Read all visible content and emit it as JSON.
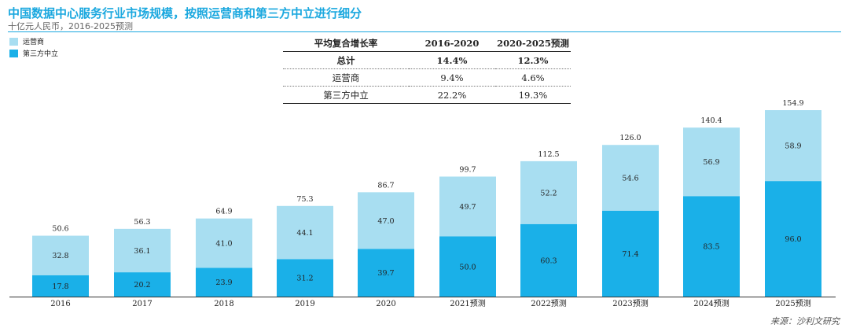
{
  "title": "中国数据中心服务行业市场规模，按照运营商和第三方中立进行细分",
  "subtitle": "十亿元人民币，2016-2025预测",
  "colors": {
    "operator": "#a8def1",
    "neutral": "#1ab0e8",
    "accent": "#1ba8df"
  },
  "legend": {
    "operator": "运营商",
    "neutral": "第三方中立"
  },
  "cagr_table": {
    "headers": [
      "平均复合增长率",
      "2016-2020",
      "2020-2025预测"
    ],
    "rows": [
      [
        "总计",
        "14.4%",
        "12.3%"
      ],
      [
        "运营商",
        "9.4%",
        "4.6%"
      ],
      [
        "第三方中立",
        "22.2%",
        "19.3%"
      ]
    ]
  },
  "source": "来源：沙利文研究",
  "chart_data": {
    "type": "bar",
    "stacked": true,
    "title": "中国数据中心服务行业市场规模，按照运营商和第三方中立进行细分",
    "ylabel": "十亿元人民币",
    "categories": [
      "2016",
      "2017",
      "2018",
      "2019",
      "2020",
      "2021预测",
      "2022预测",
      "2023预测",
      "2024预测",
      "2025预测"
    ],
    "series": [
      {
        "name": "第三方中立",
        "values": [
          17.8,
          20.2,
          23.9,
          31.2,
          39.7,
          50.0,
          60.3,
          71.4,
          83.5,
          96.0
        ]
      },
      {
        "name": "运营商",
        "values": [
          32.8,
          36.1,
          41.0,
          44.1,
          47.0,
          49.7,
          52.2,
          54.6,
          56.9,
          58.9
        ]
      }
    ],
    "totals": [
      50.6,
      56.3,
      64.9,
      75.3,
      86.7,
      99.7,
      112.5,
      126.0,
      140.4,
      154.9
    ],
    "ylim": [
      0,
      160
    ],
    "grid": false
  }
}
